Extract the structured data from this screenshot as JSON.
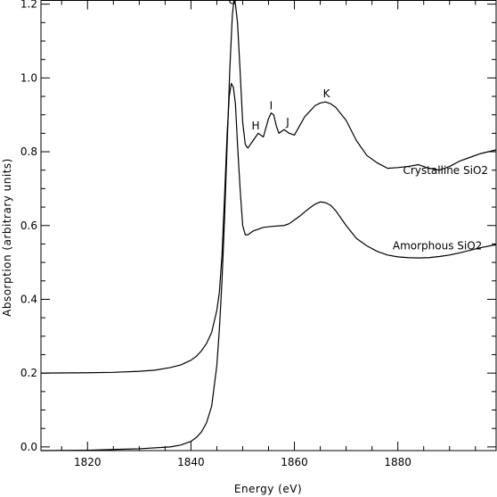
{
  "chart_data": {
    "type": "line",
    "title": "",
    "xlabel": "Energy (eV)",
    "ylabel": "Absorption (arbitrary units)",
    "xlim": [
      1811,
      1899
    ],
    "ylim": [
      -0.01,
      1.21
    ],
    "x_ticks": [
      1820,
      1840,
      1860,
      1880
    ],
    "y_ticks": [
      0.0,
      0.2,
      0.4,
      0.6,
      0.8,
      1.0,
      1.2
    ],
    "x_tick_labels": [
      "1820",
      "1840",
      "1860",
      "1880"
    ],
    "y_tick_labels": [
      "0.0",
      "0.2",
      "0.4",
      "0.6",
      "0.8",
      "1.0",
      "1.2"
    ],
    "grid": false,
    "series": [
      {
        "name": "Crystalline SiO2",
        "x": [
          1811,
          1820,
          1830,
          1836,
          1838,
          1840,
          1841,
          1842,
          1843,
          1844,
          1845,
          1845.5,
          1846,
          1846.5,
          1847,
          1847.5,
          1848,
          1848.3,
          1848.6,
          1849,
          1849.5,
          1850,
          1850.5,
          1851,
          1852,
          1853,
          1854,
          1855,
          1855.5,
          1856,
          1856.5,
          1857,
          1858,
          1859,
          1860,
          1861,
          1862,
          1863,
          1864,
          1865,
          1866,
          1867,
          1868,
          1870,
          1872,
          1874,
          1876,
          1878,
          1880,
          1882,
          1884,
          1886,
          1888,
          1890,
          1892,
          1894,
          1896,
          1899
        ],
        "values": [
          -0.01,
          -0.009,
          -0.005,
          0.0,
          0.005,
          0.015,
          0.025,
          0.04,
          0.065,
          0.11,
          0.22,
          0.32,
          0.45,
          0.62,
          0.82,
          1.02,
          1.17,
          1.21,
          1.2,
          1.15,
          1.02,
          0.88,
          0.82,
          0.81,
          0.83,
          0.85,
          0.84,
          0.89,
          0.905,
          0.9,
          0.87,
          0.85,
          0.86,
          0.85,
          0.845,
          0.87,
          0.895,
          0.91,
          0.925,
          0.932,
          0.935,
          0.93,
          0.92,
          0.885,
          0.83,
          0.79,
          0.77,
          0.755,
          0.757,
          0.76,
          0.765,
          0.755,
          0.75,
          0.76,
          0.775,
          0.785,
          0.795,
          0.805
        ]
      },
      {
        "name": "Amorphous SiO2",
        "x": [
          1811,
          1820,
          1825,
          1830,
          1833,
          1836,
          1838,
          1840,
          1841,
          1842,
          1843,
          1844,
          1845,
          1845.5,
          1846,
          1846.5,
          1847,
          1847.4,
          1847.8,
          1848.2,
          1848.6,
          1849,
          1849.5,
          1850,
          1850.5,
          1851,
          1852,
          1853,
          1854,
          1856,
          1858,
          1859,
          1860,
          1861,
          1862,
          1863,
          1864,
          1865,
          1866,
          1867,
          1868,
          1870,
          1872,
          1874,
          1876,
          1878,
          1880,
          1882,
          1884,
          1886,
          1888,
          1890,
          1892,
          1894,
          1896,
          1899
        ],
        "values": [
          0.2,
          0.201,
          0.202,
          0.205,
          0.208,
          0.215,
          0.222,
          0.235,
          0.245,
          0.26,
          0.28,
          0.31,
          0.37,
          0.42,
          0.52,
          0.68,
          0.85,
          0.95,
          0.985,
          0.975,
          0.93,
          0.82,
          0.7,
          0.6,
          0.575,
          0.575,
          0.585,
          0.59,
          0.595,
          0.598,
          0.6,
          0.605,
          0.615,
          0.625,
          0.637,
          0.648,
          0.658,
          0.664,
          0.662,
          0.655,
          0.64,
          0.6,
          0.565,
          0.545,
          0.53,
          0.52,
          0.515,
          0.513,
          0.512,
          0.513,
          0.516,
          0.52,
          0.526,
          0.533,
          0.54,
          0.548
        ]
      }
    ],
    "series_labels": [
      {
        "text": "Crystalline SiO2",
        "x": 1881,
        "y": 0.74
      },
      {
        "text": "Amorphous SiO2",
        "x": 1879,
        "y": 0.535
      }
    ],
    "annotations": [
      {
        "text": "G",
        "x": 1848,
        "y": 1.2
      },
      {
        "text": "H",
        "x": 1852.5,
        "y": 0.86
      },
      {
        "text": "I",
        "x": 1855.5,
        "y": 0.915
      },
      {
        "text": "J",
        "x": 1858.7,
        "y": 0.87
      },
      {
        "text": "K",
        "x": 1866.2,
        "y": 0.948
      }
    ]
  }
}
